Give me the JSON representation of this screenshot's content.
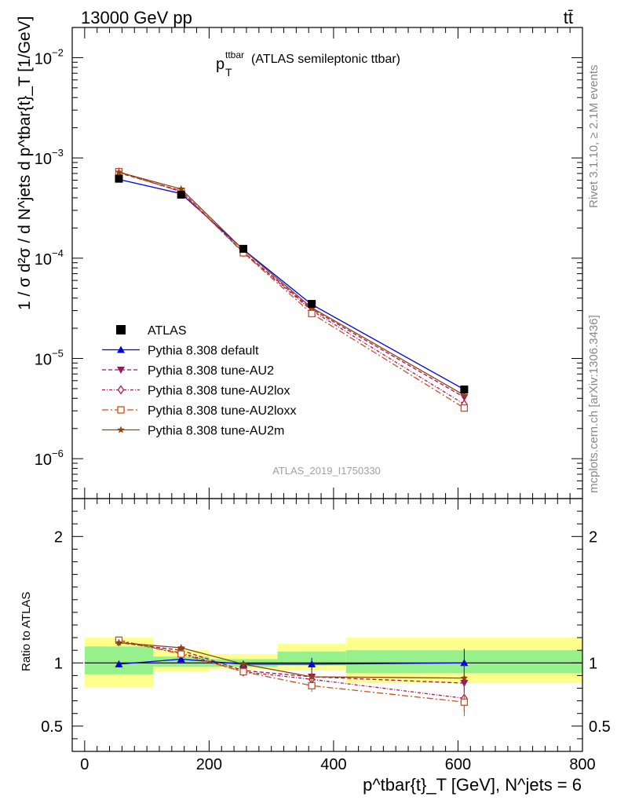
{
  "header": {
    "energy_label": "13000 GeV pp",
    "process_label": "tt̄"
  },
  "side_labels": {
    "rivet": "Rivet 3.1.10, ≥ 2.1M events",
    "mcplots": "mcplots.cern.ch [arXiv:1306.3436]"
  },
  "chart_data": {
    "type": "line",
    "title_main": "p",
    "title_sub": "T",
    "title_sup": "ttbar",
    "title_rest": " (ATLAS semileptonic ttbar)",
    "watermark": "ATLAS_2019_I1750330",
    "yscale": "log",
    "ylim": [
      4e-07,
      0.02
    ],
    "xlim": [
      -20,
      800
    ],
    "ytick_labels": [
      "10",
      "10",
      "10",
      "10",
      "10"
    ],
    "ytick_exps": [
      "−2",
      "−3",
      "−4",
      "−5",
      "−6"
    ],
    "ratio_ylim": [
      0.3,
      2.3
    ],
    "ratio_ytick_labels": [
      "2",
      "1",
      "0.5"
    ],
    "ratio_ylabel": "Ratio to ATLAS",
    "xtick_labels": [
      "0",
      "200",
      "400",
      "600",
      "800"
    ],
    "ylabel": "1 / σ d²σ / d N^jets d p^tbar{t}_T [1/GeV]",
    "xlabel": "p^tbar{t}_T [GeV], N^jets = 6",
    "bins": [
      [
        0,
        110
      ],
      [
        110,
        200
      ],
      [
        200,
        310
      ],
      [
        310,
        420
      ],
      [
        420,
        800
      ]
    ],
    "x": [
      55,
      155,
      255,
      365,
      610
    ],
    "data": {
      "name": "ATLAS",
      "values": [
        0.00062,
        0.00043,
        0.000124,
        3.5e-05,
        4.9e-06
      ],
      "band_yellow": [
        [
          0.81,
          1.2
        ],
        [
          0.93,
          1.1
        ],
        [
          0.95,
          1.07
        ],
        [
          0.94,
          1.15
        ],
        [
          0.84,
          1.2
        ]
      ],
      "band_green": [
        [
          0.91,
          1.13
        ],
        [
          0.97,
          1.05
        ],
        [
          0.97,
          1.03
        ],
        [
          0.98,
          1.09
        ],
        [
          0.92,
          1.1
        ]
      ]
    },
    "series": [
      {
        "name": "Pythia 8.308 default",
        "color": "#0000e0",
        "dash": "",
        "marker": "triangle-up",
        "values": [
          0.00061,
          0.00044,
          0.000122,
          3.45e-05,
          4.9e-06
        ],
        "ratio": [
          0.99,
          1.03,
          0.99,
          0.99,
          1.0
        ]
      },
      {
        "name": "Pythia 8.308 tune-AU2",
        "color": "#9c1460",
        "dash": "5,3",
        "marker": "triangle-down",
        "values": [
          0.00071,
          0.00047,
          0.000115,
          3.1e-05,
          4.1e-06
        ],
        "ratio": [
          1.16,
          1.1,
          0.94,
          0.89,
          0.84
        ]
      },
      {
        "name": "Pythia 8.308 tune-AU2lox",
        "color": "#b31a4a",
        "dash": "4,2,1,2",
        "marker": "diamond",
        "values": [
          0.00072,
          0.00046,
          0.000114,
          3e-05,
          3.5e-06
        ],
        "ratio": [
          1.17,
          1.08,
          0.93,
          0.87,
          0.72
        ]
      },
      {
        "name": "Pythia 8.308 tune-AU2loxx",
        "color": "#c8501e",
        "dash": "8,3,2,3",
        "marker": "square",
        "values": [
          0.00073,
          0.00046,
          0.000113,
          2.8e-05,
          3.2e-06
        ],
        "ratio": [
          1.18,
          1.07,
          0.93,
          0.82,
          0.69
        ]
      },
      {
        "name": "Pythia 8.308 tune-AU2m",
        "color": "#8b4513",
        "dash": "",
        "marker": "star",
        "values": [
          0.00072,
          0.00049,
          0.000121,
          3.2e-05,
          4.3e-06
        ],
        "ratio": [
          1.16,
          1.12,
          0.99,
          0.89,
          0.88
        ]
      }
    ],
    "legend_position": "lower-left"
  }
}
